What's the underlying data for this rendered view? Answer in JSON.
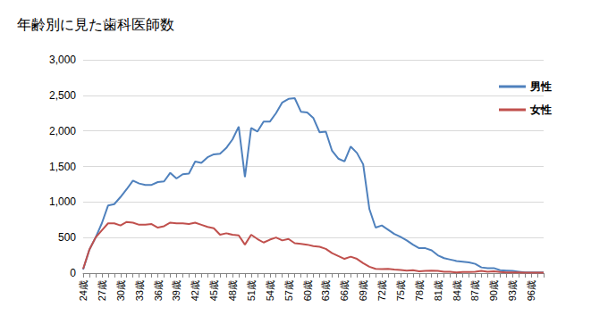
{
  "chart_data": {
    "type": "line",
    "title": "年齢別に見た歯科医師数",
    "categories": [
      "24歳",
      null,
      null,
      "27歳",
      null,
      null,
      "30歳",
      null,
      null,
      "33歳",
      null,
      null,
      "36歳",
      null,
      null,
      "39歳",
      null,
      null,
      "42歳",
      null,
      null,
      "45歳",
      null,
      null,
      "48歳",
      null,
      null,
      "51歳",
      null,
      null,
      "54歳",
      null,
      null,
      "57歳",
      null,
      null,
      "60歳",
      null,
      null,
      "63歳",
      null,
      null,
      "66歳",
      null,
      null,
      "69歳",
      null,
      null,
      "72歳",
      null,
      null,
      "75歳",
      null,
      null,
      "78歳",
      null,
      null,
      "81歳",
      null,
      null,
      "84歳",
      null,
      null,
      "87歳",
      null,
      null,
      "90歳",
      null,
      null,
      "93歳",
      null,
      null,
      "96歳",
      null,
      null
    ],
    "series": [
      {
        "name": "男性",
        "color": "#4f81bd",
        "values": [
          50,
          330,
          500,
          700,
          950,
          970,
          1070,
          1180,
          1300,
          1260,
          1240,
          1240,
          1280,
          1290,
          1410,
          1330,
          1390,
          1400,
          1570,
          1550,
          1630,
          1670,
          1680,
          1760,
          1880,
          2060,
          1350,
          2040,
          1990,
          2130,
          2130,
          2250,
          2400,
          2450,
          2460,
          2270,
          2260,
          2180,
          1980,
          1990,
          1720,
          1610,
          1570,
          1780,
          1690,
          1530,
          900,
          640,
          670,
          610,
          550,
          510,
          460,
          400,
          350,
          350,
          320,
          250,
          210,
          190,
          170,
          160,
          150,
          130,
          80,
          70,
          70,
          40,
          35,
          30,
          20,
          10,
          10,
          10,
          10
        ]
      },
      {
        "name": "女性",
        "color": "#c0504d",
        "values": [
          60,
          330,
          500,
          600,
          700,
          700,
          670,
          720,
          710,
          680,
          680,
          690,
          640,
          660,
          710,
          700,
          700,
          690,
          710,
          680,
          650,
          630,
          540,
          560,
          540,
          530,
          400,
          540,
          480,
          430,
          470,
          500,
          460,
          480,
          420,
          410,
          400,
          380,
          370,
          340,
          280,
          240,
          200,
          230,
          200,
          140,
          90,
          60,
          55,
          60,
          50,
          45,
          35,
          40,
          25,
          30,
          35,
          30,
          20,
          20,
          10,
          15,
          15,
          20,
          30,
          20,
          25,
          15,
          10,
          10,
          10,
          5,
          5,
          5,
          5
        ]
      }
    ],
    "ylim": [
      0,
      3000
    ],
    "yticks": [
      0,
      500,
      {
        "value": 1000,
        "label": "1,000"
      },
      {
        "value": 1500,
        "label": "1,500"
      },
      {
        "value": 2000,
        "label": "2,000"
      },
      {
        "value": 2500,
        "label": "2,500"
      },
      {
        "value": 3000,
        "label": "3,000"
      }
    ],
    "grid": true,
    "legend": "upper right"
  }
}
